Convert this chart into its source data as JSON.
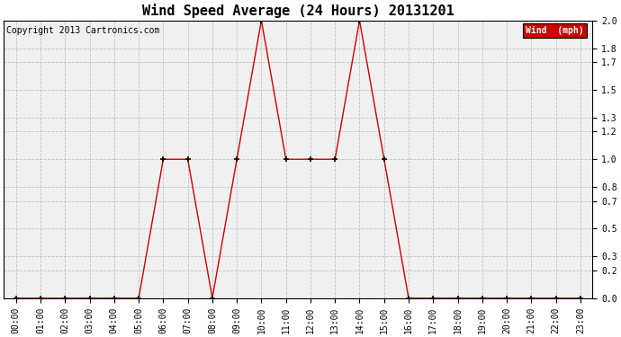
{
  "title": "Wind Speed Average (24 Hours) 20131201",
  "copyright": "Copyright 2013 Cartronics.com",
  "legend_label": "Wind  (mph)",
  "legend_bg": "#cc0000",
  "legend_text_color": "#ffffff",
  "x_labels": [
    "00:00",
    "01:00",
    "02:00",
    "03:00",
    "04:00",
    "05:00",
    "06:00",
    "07:00",
    "08:00",
    "09:00",
    "10:00",
    "11:00",
    "12:00",
    "13:00",
    "14:00",
    "15:00",
    "16:00",
    "17:00",
    "18:00",
    "19:00",
    "20:00",
    "21:00",
    "22:00",
    "23:00"
  ],
  "y_values": [
    0.0,
    0.0,
    0.0,
    0.0,
    0.0,
    0.0,
    1.0,
    1.0,
    0.0,
    1.0,
    2.0,
    1.0,
    1.0,
    1.0,
    2.0,
    1.0,
    0.0,
    0.0,
    0.0,
    0.0,
    0.0,
    0.0,
    0.0,
    0.0
  ],
  "line_color": "#cc0000",
  "marker_color": "#000000",
  "bg_color": "#ffffff",
  "plot_bg_color": "#f0f0f0",
  "grid_color": "#bbbbbb",
  "ylim": [
    0.0,
    2.0
  ],
  "yticks": [
    0.0,
    0.2,
    0.3,
    0.5,
    0.7,
    0.8,
    1.0,
    1.2,
    1.3,
    1.5,
    1.7,
    1.8,
    2.0
  ],
  "title_fontsize": 11,
  "tick_fontsize": 7,
  "copyright_fontsize": 7
}
